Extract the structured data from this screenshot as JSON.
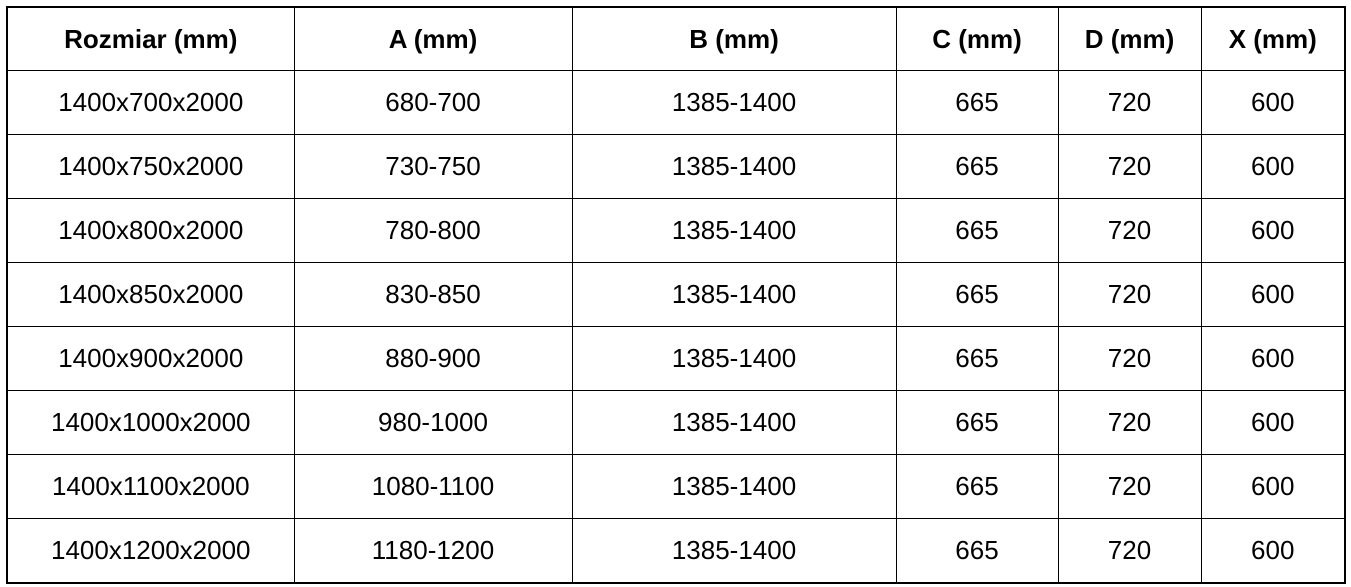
{
  "headers": [
    "Rozmiar (mm)",
    "A (mm)",
    "B (mm)",
    "C (mm)",
    "D (mm)",
    "X (mm)"
  ],
  "rows": [
    [
      "1400x700x2000",
      "680-700",
      "1385-1400",
      "665",
      "720",
      "600"
    ],
    [
      "1400x750x2000",
      "730-750",
      "1385-1400",
      "665",
      "720",
      "600"
    ],
    [
      "1400x800x2000",
      "780-800",
      "1385-1400",
      "665",
      "720",
      "600"
    ],
    [
      "1400x850x2000",
      "830-850",
      "1385-1400",
      "665",
      "720",
      "600"
    ],
    [
      "1400x900x2000",
      "880-900",
      "1385-1400",
      "665",
      "720",
      "600"
    ],
    [
      "1400x1000x2000",
      "980-1000",
      "1385-1400",
      "665",
      "720",
      "600"
    ],
    [
      "1400x1100x2000",
      "1080-1100",
      "1385-1400",
      "665",
      "720",
      "600"
    ],
    [
      "1400x1200x2000",
      "1180-1200",
      "1385-1400",
      "665",
      "720",
      "600"
    ]
  ]
}
